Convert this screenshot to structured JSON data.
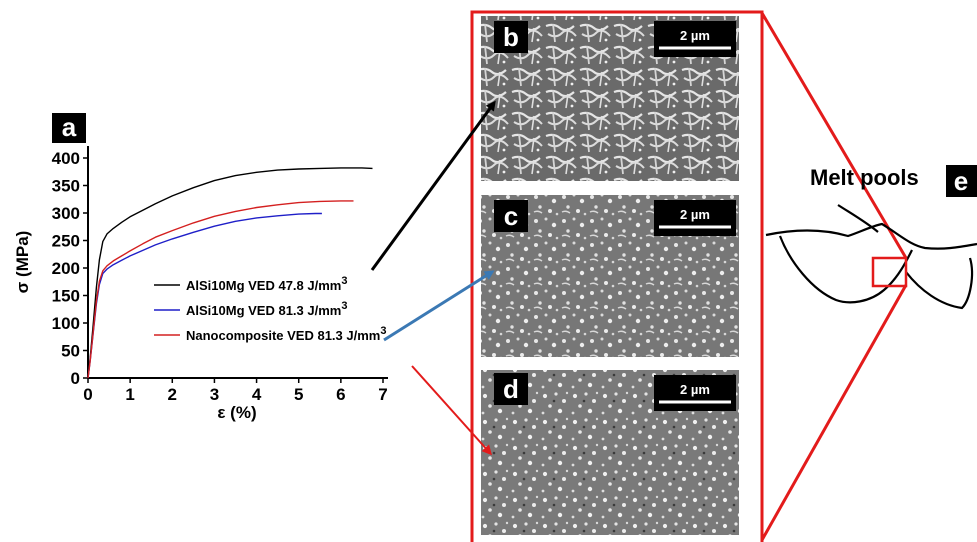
{
  "chart_data": {
    "type": "line",
    "panel_label": "a",
    "xlabel": "ε (%)",
    "ylabel": "σ (MPa)",
    "xlim": [
      0,
      7
    ],
    "ylim": [
      0,
      400
    ],
    "x_ticks": [
      0,
      1,
      2,
      3,
      4,
      5,
      6,
      7
    ],
    "y_ticks": [
      0,
      50,
      100,
      150,
      200,
      250,
      300,
      350,
      400
    ],
    "series": [
      {
        "name": "AlSi10Mg VED 47.8 J/mm",
        "sup": "3",
        "color": "#000000",
        "points": [
          [
            0,
            0
          ],
          [
            0.05,
            35
          ],
          [
            0.12,
            95
          ],
          [
            0.2,
            165
          ],
          [
            0.27,
            215
          ],
          [
            0.35,
            248
          ],
          [
            0.45,
            262
          ],
          [
            0.6,
            272
          ],
          [
            0.8,
            283
          ],
          [
            1.0,
            293
          ],
          [
            1.3,
            305
          ],
          [
            1.6,
            317
          ],
          [
            2.0,
            331
          ],
          [
            2.5,
            346
          ],
          [
            3.0,
            359
          ],
          [
            3.5,
            368
          ],
          [
            4.0,
            374
          ],
          [
            4.5,
            378
          ],
          [
            5.0,
            380
          ],
          [
            5.5,
            381
          ],
          [
            6.0,
            382
          ],
          [
            6.5,
            382
          ],
          [
            6.75,
            381
          ]
        ]
      },
      {
        "name": "AlSi10Mg  VED 81.3 J/mm",
        "sup": "3",
        "color": "#1f1fc8",
        "points": [
          [
            0,
            0
          ],
          [
            0.05,
            30
          ],
          [
            0.12,
            80
          ],
          [
            0.2,
            135
          ],
          [
            0.27,
            170
          ],
          [
            0.35,
            190
          ],
          [
            0.45,
            198
          ],
          [
            0.6,
            206
          ],
          [
            0.8,
            214
          ],
          [
            1.0,
            222
          ],
          [
            1.3,
            232
          ],
          [
            1.6,
            242
          ],
          [
            2.0,
            253
          ],
          [
            2.5,
            265
          ],
          [
            3.0,
            276
          ],
          [
            3.5,
            285
          ],
          [
            4.0,
            291
          ],
          [
            4.5,
            295
          ],
          [
            5.0,
            298
          ],
          [
            5.4,
            299
          ],
          [
            5.55,
            299
          ]
        ]
      },
      {
        "name": "Nanocomposite VED 81.3 J/mm",
        "sup": "3",
        "color": "#d42020",
        "points": [
          [
            0,
            0
          ],
          [
            0.05,
            30
          ],
          [
            0.12,
            82
          ],
          [
            0.2,
            140
          ],
          [
            0.27,
            176
          ],
          [
            0.35,
            195
          ],
          [
            0.45,
            204
          ],
          [
            0.6,
            213
          ],
          [
            0.8,
            222
          ],
          [
            1.0,
            231
          ],
          [
            1.3,
            244
          ],
          [
            1.6,
            256
          ],
          [
            2.0,
            268
          ],
          [
            2.5,
            282
          ],
          [
            3.0,
            294
          ],
          [
            3.5,
            303
          ],
          [
            4.0,
            310
          ],
          [
            4.5,
            315
          ],
          [
            5.0,
            319
          ],
          [
            5.5,
            321
          ],
          [
            6.0,
            322
          ],
          [
            6.3,
            322
          ]
        ]
      }
    ]
  },
  "micrographs": [
    {
      "label": "b",
      "scale_bar": "2 µm"
    },
    {
      "label": "c",
      "scale_bar": "2 µm"
    },
    {
      "label": "d",
      "scale_bar": "2 µm"
    }
  ],
  "melt_pools": {
    "title": "Melt pools",
    "label": "e"
  },
  "colors": {
    "frame_red": "#e31b1b",
    "arrow_black": "#000000",
    "arrow_blue": "#3b79b4",
    "arrow_red": "#e31b1b",
    "sem_gray": "#6f6f6f"
  }
}
